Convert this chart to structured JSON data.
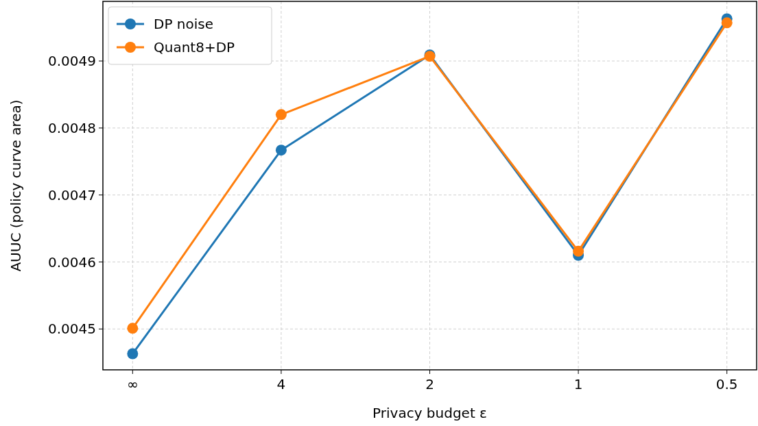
{
  "chart_data": {
    "type": "line",
    "xlabel": "Privacy budget ε",
    "ylabel": "AUUC (policy curve area)",
    "categories": [
      "∞",
      "4",
      "2",
      "1",
      "0.5"
    ],
    "series": [
      {
        "name": "DP noise",
        "color": "#1f77b4",
        "values": [
          0.004463,
          0.004767,
          0.004909,
          0.00461,
          0.004963
        ]
      },
      {
        "name": "Quant8+DP",
        "color": "#ff7f0e",
        "values": [
          0.004501,
          0.00482,
          0.004907,
          0.004616,
          0.004957
        ]
      }
    ],
    "ylim": [
      0.004439,
      0.004989
    ],
    "yticks": [
      0.0045,
      0.0046,
      0.0047,
      0.0048,
      0.0049
    ],
    "grid": true,
    "legend": "top left",
    "marker": "circle",
    "line_style": "solid"
  }
}
